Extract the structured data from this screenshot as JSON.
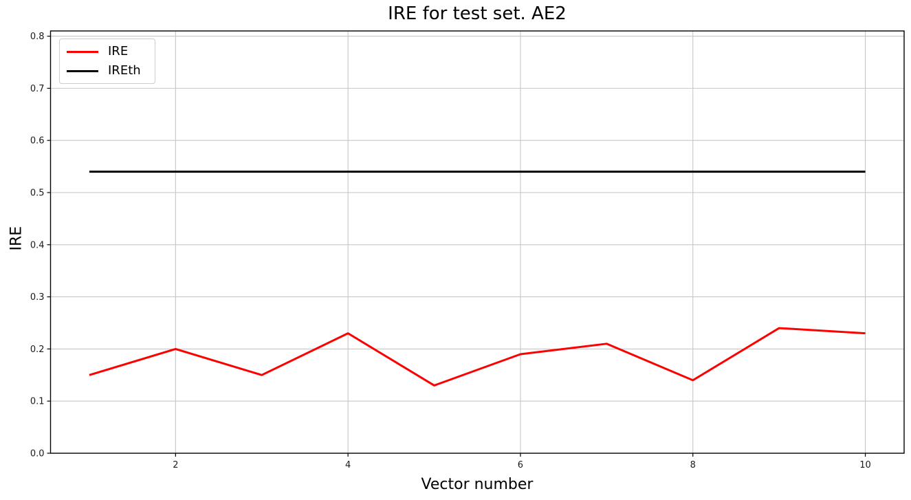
{
  "figure": {
    "background": "#ffffff",
    "grid_color": "#c6c6c6",
    "spine_color": "#000000",
    "tick_label_color": "#1a1a1a"
  },
  "chart_data": {
    "type": "line",
    "title": "IRE for test set. AE2",
    "xlabel": "Vector number",
    "ylabel": "IRE",
    "x": [
      1,
      2,
      3,
      4,
      5,
      6,
      7,
      8,
      9,
      10
    ],
    "series": [
      {
        "name": "IRE",
        "color": "#ff0000",
        "values": [
          0.15,
          0.2,
          0.15,
          0.23,
          0.13,
          0.19,
          0.21,
          0.14,
          0.24,
          0.23
        ]
      },
      {
        "name": "IREth",
        "color": "#000000",
        "values": [
          0.54,
          0.54,
          0.54,
          0.54,
          0.54,
          0.54,
          0.54,
          0.54,
          0.54,
          0.54
        ]
      }
    ],
    "xlim": [
      0.55,
      10.45
    ],
    "ylim": [
      0,
      0.81
    ],
    "xticks": [
      2,
      4,
      6,
      8,
      10
    ],
    "xtick_labels": [
      "2",
      "4",
      "6",
      "8",
      "10"
    ],
    "yticks": [
      0.0,
      0.1,
      0.2,
      0.3,
      0.4,
      0.5,
      0.6,
      0.7,
      0.8
    ],
    "ytick_labels": [
      "0.0",
      "0.1",
      "0.2",
      "0.3",
      "0.4",
      "0.5",
      "0.6",
      "0.7",
      "0.8"
    ],
    "grid": true,
    "legend_position": "upper-left"
  }
}
